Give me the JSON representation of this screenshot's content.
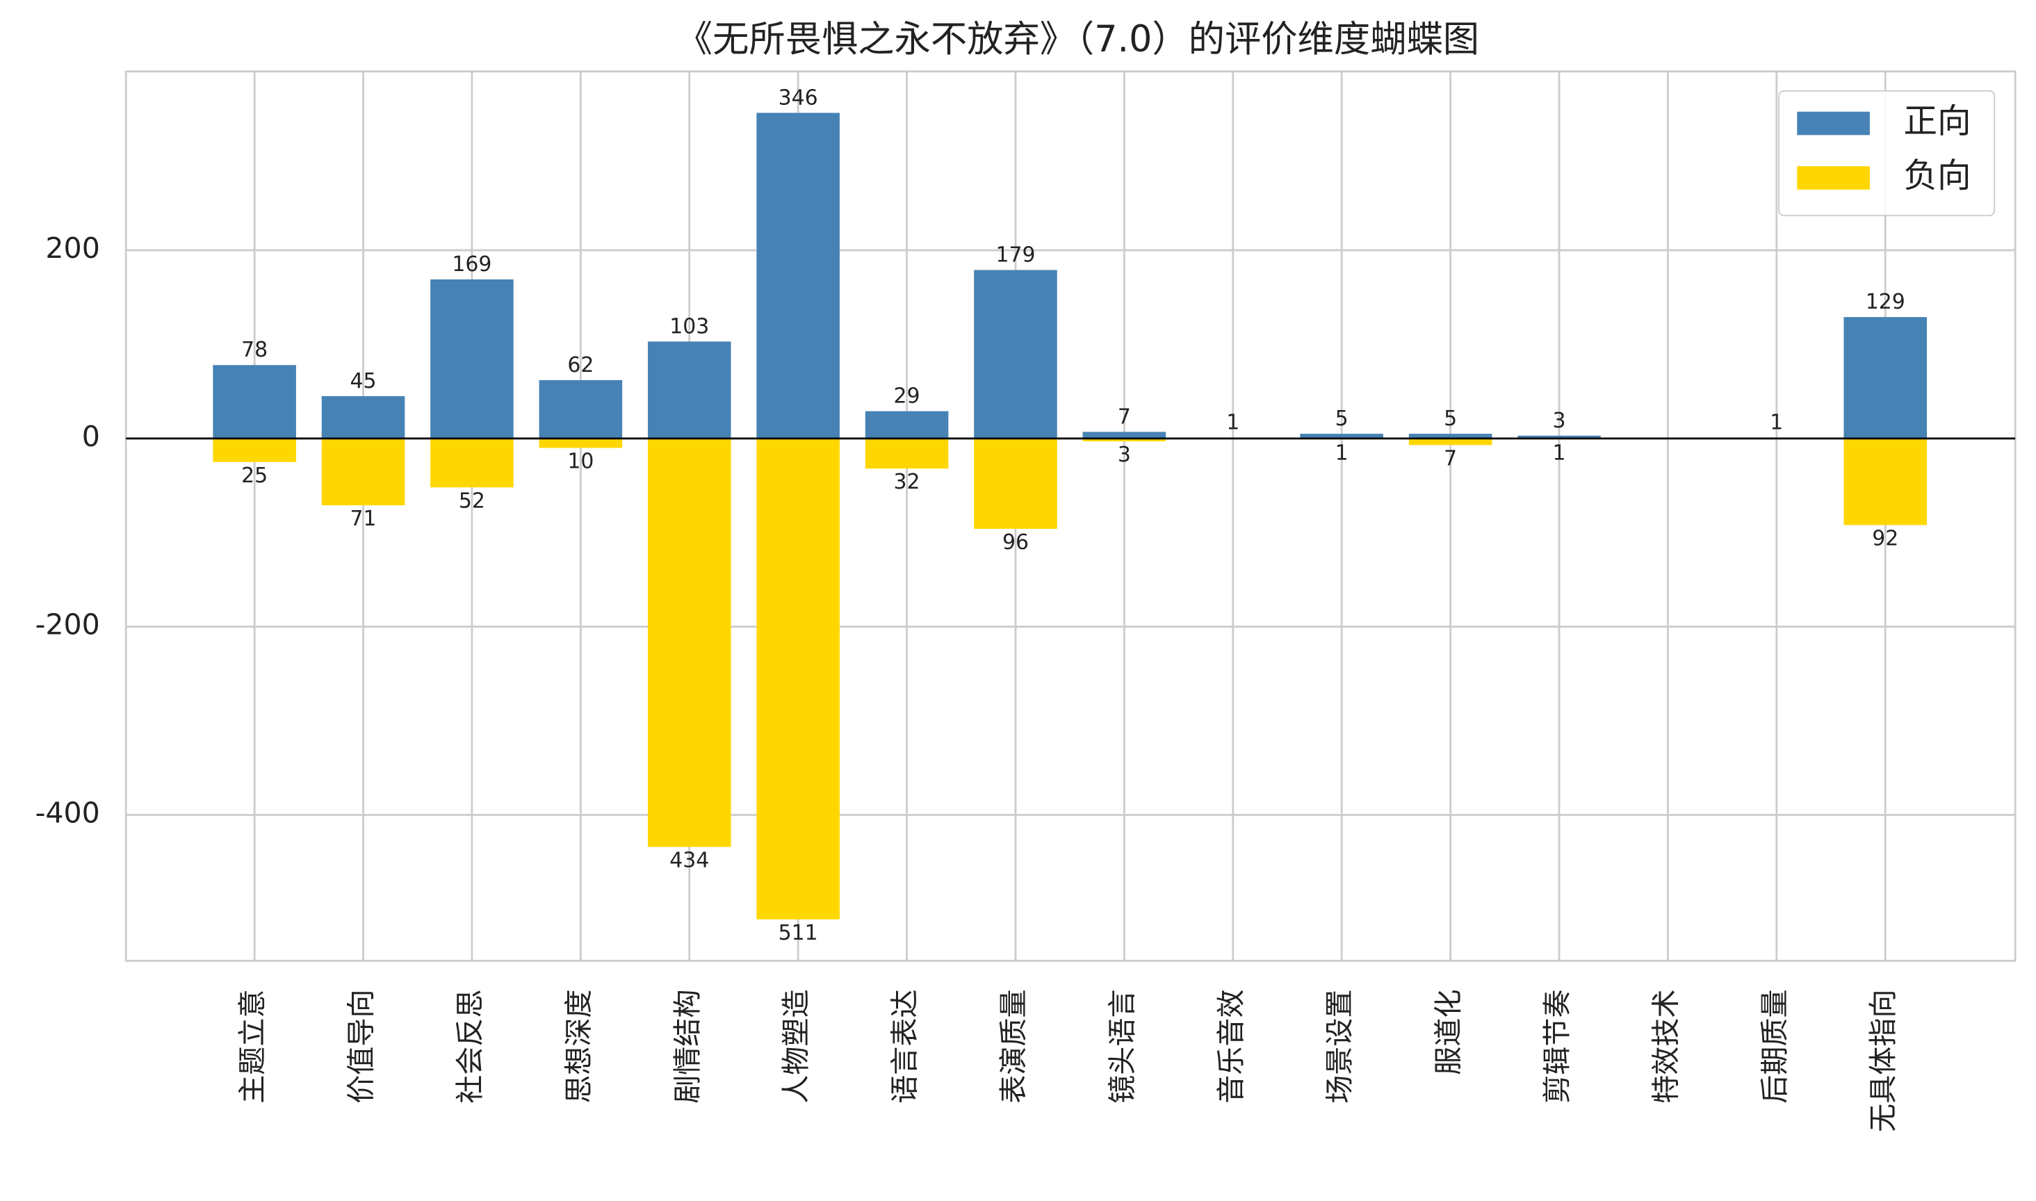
{
  "chart_data": {
    "type": "bar",
    "title": "《无所畏惧之永不放弃》（7.0）的评价维度蝴蝶图",
    "categories": [
      "主题立意",
      "价值导向",
      "社会反思",
      "思想深度",
      "剧情结构",
      "人物塑造",
      "语言表达",
      "表演质量",
      "镜头语言",
      "音乐音效",
      "场景设置",
      "服道化",
      "剪辑节奏",
      "特效技术",
      "后期质量",
      "无具体指向"
    ],
    "series": [
      {
        "name": "正向",
        "color": "#4682b4",
        "values": [
          78,
          45,
          169,
          62,
          103,
          346,
          29,
          179,
          7,
          1,
          5,
          5,
          3,
          0,
          1,
          129
        ]
      },
      {
        "name": "负向",
        "color": "#ffd700",
        "values": [
          -25,
          -71,
          -52,
          -10,
          -434,
          -511,
          -32,
          -96,
          -3,
          0,
          -1,
          -7,
          -1,
          0,
          0,
          -92
        ],
        "value_labels": [
          "25",
          "71",
          "52",
          "10",
          "434",
          "511",
          "32",
          "96",
          "3",
          null,
          "1",
          "7",
          "1",
          null,
          null,
          "92"
        ]
      }
    ],
    "ylim": [
      -555,
      390
    ],
    "yticks": [
      -400,
      -200,
      0,
      200
    ],
    "grid": true,
    "legend": "upper right"
  }
}
